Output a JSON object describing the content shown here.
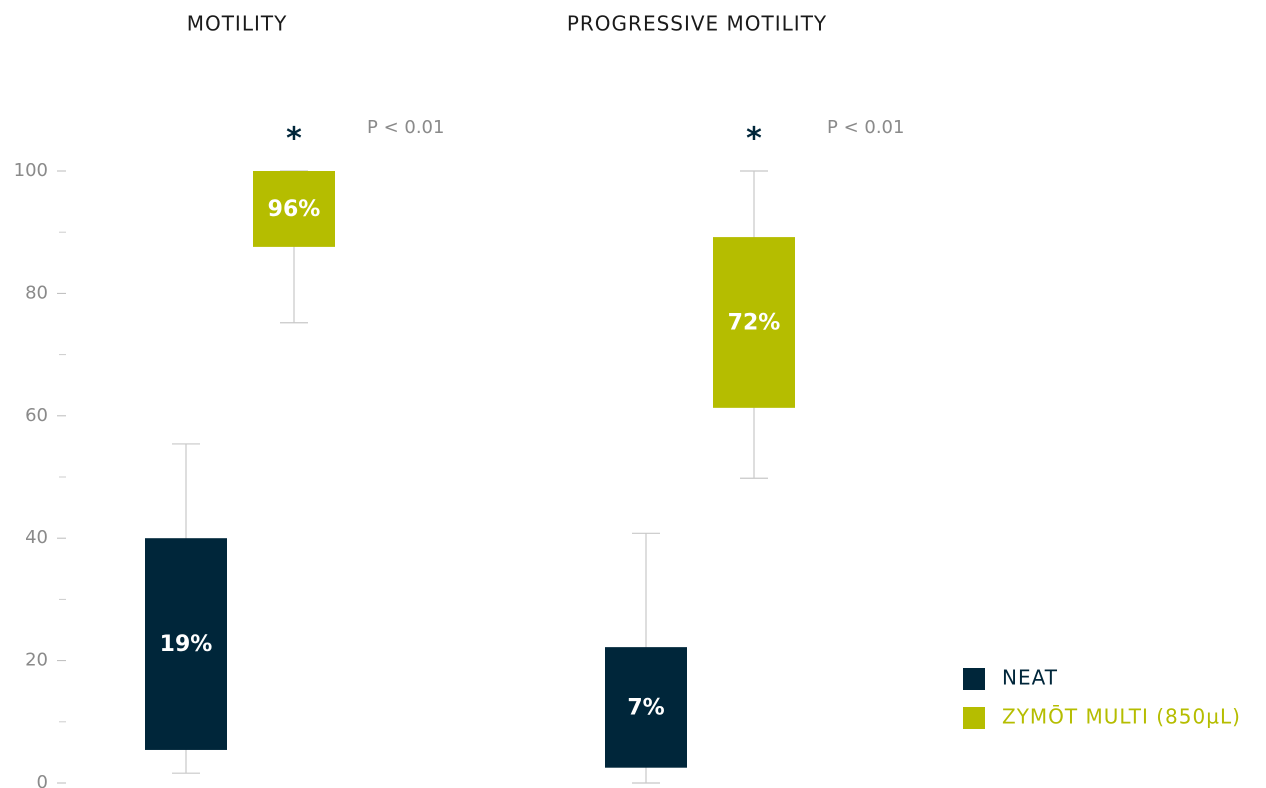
{
  "chart_data": {
    "type": "box",
    "categories": [
      "MOTILITY",
      "PROGRESSIVE MOTILITY"
    ],
    "series": [
      {
        "name": "NEAT",
        "color": "#00263a",
        "whisker_low": [
          1.6,
          0
        ],
        "q1": [
          5.4,
          2.5
        ],
        "q3": [
          40,
          22.2
        ],
        "whisker_high": [
          55.4,
          40.8
        ],
        "median": [
          19,
          7
        ],
        "value_labels": [
          "19%",
          "7%"
        ]
      },
      {
        "name": "ZYMŌT MULTI (850µL)",
        "color": "#b5bd00",
        "whisker_low": [
          75.2,
          49.8
        ],
        "q1": [
          87.6,
          61.3
        ],
        "q3": [
          100,
          89.2
        ],
        "whisker_high": [
          100,
          100
        ],
        "median": [
          96,
          72
        ],
        "value_labels": [
          "96%",
          "72%"
        ]
      }
    ],
    "significance": [
      "*",
      "*"
    ],
    "p_values": [
      "P < 0.01",
      "P < 0.01"
    ],
    "ylim": [
      0,
      100
    ],
    "yticks": [
      0,
      20,
      40,
      60,
      80,
      100
    ],
    "minor_yticks": [
      10,
      30,
      50,
      70,
      90
    ],
    "legend": "bottom-right"
  }
}
